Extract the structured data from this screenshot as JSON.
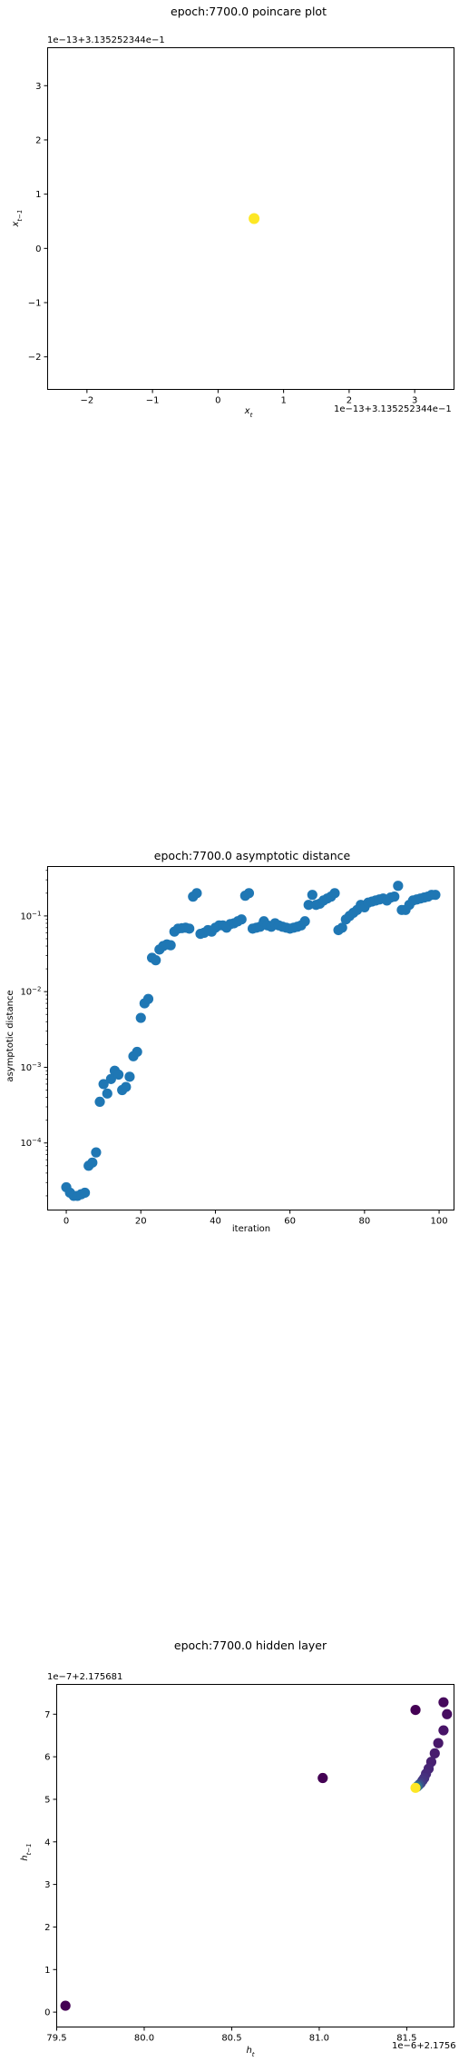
{
  "chart_data": [
    {
      "type": "scatter",
      "title": "epoch:7700.0 poincare plot",
      "xlabel": "x_t",
      "ylabel": "x_{t-1}",
      "x_offset_label": "1e−13+3.135252344e−1",
      "y_offset_label": "1e−13+3.135252344e−1",
      "xlim": [
        -2.6,
        3.6
      ],
      "ylim": [
        -2.6,
        3.7
      ],
      "xticks": [
        -2,
        -1,
        0,
        1,
        2,
        3
      ],
      "yticks": [
        -2,
        -1,
        0,
        1,
        2,
        3
      ],
      "xtick_labels": [
        "−2",
        "−1",
        "0",
        "1",
        "2",
        "3"
      ],
      "ytick_labels": [
        "−2",
        "−1",
        "0",
        "1",
        "2",
        "3"
      ],
      "points": [
        [
          0.55,
          0.55
        ]
      ],
      "colors": [
        "#fde725"
      ]
    },
    {
      "type": "scatter",
      "title": "epoch:7700.0 asymptotic distance",
      "xlabel": "iteration",
      "ylabel": "asymptotic distance",
      "yscale": "log",
      "xlim": [
        -5,
        104
      ],
      "ylim": [
        1.3e-05,
        0.45
      ],
      "xticks": [
        0,
        20,
        40,
        60,
        80,
        100
      ],
      "xtick_labels": [
        "0",
        "20",
        "40",
        "60",
        "80",
        "100"
      ],
      "ytick_exponents": [
        -4,
        -3,
        -2,
        -1
      ],
      "color": "#1f77b4",
      "values": [
        2.6e-05,
        2.2e-05,
        2e-05,
        2e-05,
        2.1e-05,
        2.2e-05,
        5e-05,
        5.5e-05,
        7.5e-05,
        0.00035,
        0.0006,
        0.00045,
        0.0007,
        0.0009,
        0.0008,
        0.0005,
        0.00055,
        0.00075,
        0.0014,
        0.0016,
        0.0045,
        0.007,
        0.008,
        0.028,
        0.026,
        0.036,
        0.04,
        0.042,
        0.041,
        0.062,
        0.068,
        0.069,
        0.07,
        0.068,
        0.18,
        0.2,
        0.058,
        0.06,
        0.065,
        0.062,
        0.07,
        0.075,
        0.075,
        0.07,
        0.078,
        0.08,
        0.085,
        0.09,
        0.185,
        0.2,
        0.068,
        0.07,
        0.072,
        0.085,
        0.075,
        0.072,
        0.08,
        0.075,
        0.072,
        0.07,
        0.068,
        0.07,
        0.072,
        0.075,
        0.085,
        0.14,
        0.19,
        0.14,
        0.145,
        0.16,
        0.17,
        0.18,
        0.2,
        0.065,
        0.07,
        0.09,
        0.1,
        0.11,
        0.12,
        0.14,
        0.13,
        0.15,
        0.155,
        0.16,
        0.165,
        0.17,
        0.16,
        0.175,
        0.18,
        0.25,
        0.12,
        0.12,
        0.14,
        0.16,
        0.165,
        0.17,
        0.175,
        0.18,
        0.19,
        0.19
      ]
    },
    {
      "type": "scatter",
      "title": "epoch:7700.0 hidden layer",
      "xlabel": "h_t",
      "ylabel": "h_{t-1}",
      "x_offset_label": "1e−6+2.1756",
      "y_offset_label": "1e−7+2.175681",
      "xlim": [
        79.5,
        81.77
      ],
      "ylim": [
        -0.35,
        7.7
      ],
      "xticks": [
        79.5,
        80.0,
        80.5,
        81.0,
        81.5
      ],
      "xtick_labels": [
        "79.5",
        "80.0",
        "80.5",
        "81.0",
        "81.5"
      ],
      "yticks": [
        0,
        1,
        2,
        3,
        4,
        5,
        6,
        7
      ],
      "ytick_labels": [
        "0",
        "1",
        "2",
        "3",
        "4",
        "5",
        "6",
        "7"
      ],
      "points": [
        [
          79.55,
          0.15
        ],
        [
          81.02,
          5.5
        ],
        [
          81.55,
          7.1
        ],
        [
          81.71,
          7.28
        ],
        [
          81.73,
          7.0
        ],
        [
          81.71,
          6.62
        ],
        [
          81.68,
          6.32
        ],
        [
          81.66,
          6.08
        ],
        [
          81.64,
          5.88
        ],
        [
          81.625,
          5.72
        ],
        [
          81.61,
          5.6
        ],
        [
          81.6,
          5.5
        ],
        [
          81.59,
          5.44
        ],
        [
          81.58,
          5.38
        ],
        [
          81.57,
          5.34
        ],
        [
          81.56,
          5.3
        ],
        [
          81.55,
          5.27
        ]
      ],
      "colors": [
        "#440154",
        "#440154",
        "#440154",
        "#46085c",
        "#470d60",
        "#481467",
        "#48186a",
        "#481c6e",
        "#482071",
        "#472575",
        "#472a7a",
        "#46307e",
        "#453581",
        "#433e85",
        "#3b518b",
        "#2c728e",
        "#fde725"
      ]
    }
  ]
}
